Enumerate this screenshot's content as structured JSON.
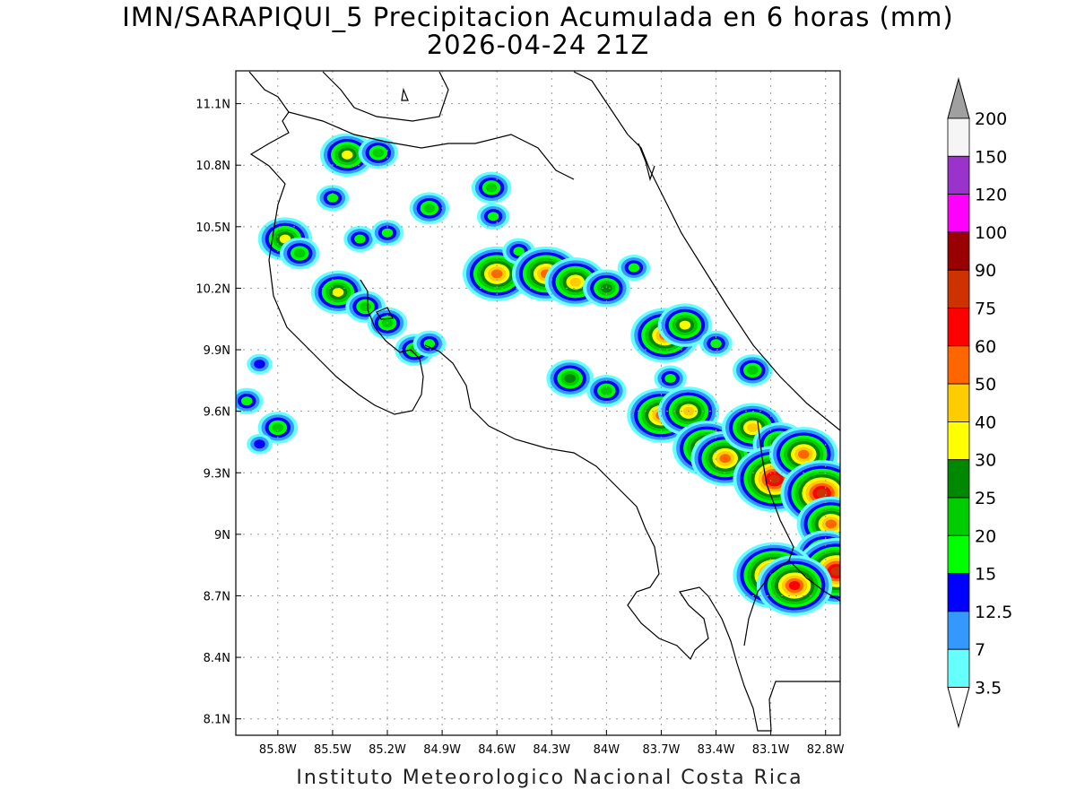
{
  "title": "IMN/SARAPIQUI_5 Precipitacion Acumulada en 6 horas (mm)",
  "subtitle": "2026-04-24 21Z",
  "footer": "Instituto Meteorologico Nacional Costa Rica",
  "map": {
    "lon_range": [
      -86.03,
      -82.72
    ],
    "lat_range": [
      8.02,
      11.26
    ],
    "grid": true
  },
  "axes": {
    "lat_ticks": [
      {
        "value": 11.1,
        "label": "11.1N"
      },
      {
        "value": 10.8,
        "label": "10.8N"
      },
      {
        "value": 10.5,
        "label": "10.5N"
      },
      {
        "value": 10.2,
        "label": "10.2N"
      },
      {
        "value": 9.9,
        "label": "9.9N"
      },
      {
        "value": 9.6,
        "label": "9.6N"
      },
      {
        "value": 9.3,
        "label": "9.3N"
      },
      {
        "value": 9.0,
        "label": "9N"
      },
      {
        "value": 8.7,
        "label": "8.7N"
      },
      {
        "value": 8.4,
        "label": "8.4N"
      },
      {
        "value": 8.1,
        "label": "8.1N"
      }
    ],
    "lon_ticks": [
      {
        "value": -85.8,
        "label": "85.8W"
      },
      {
        "value": -85.5,
        "label": "85.5W"
      },
      {
        "value": -85.2,
        "label": "85.2W"
      },
      {
        "value": -84.9,
        "label": "84.9W"
      },
      {
        "value": -84.6,
        "label": "84.6W"
      },
      {
        "value": -84.3,
        "label": "84.3W"
      },
      {
        "value": -84.0,
        "label": "84W"
      },
      {
        "value": -83.7,
        "label": "83.7W"
      },
      {
        "value": -83.4,
        "label": "83.4W"
      },
      {
        "value": -83.1,
        "label": "83.1W"
      },
      {
        "value": -82.8,
        "label": "82.8W"
      }
    ]
  },
  "colorbar": {
    "under_color": "#ffffff",
    "over_color": "#a0a0a0",
    "bins": [
      {
        "color": "#66ffff",
        "label": "3.5"
      },
      {
        "color": "#3399ff",
        "label": "7"
      },
      {
        "color": "#0000ff",
        "label": "12.5"
      },
      {
        "color": "#00ff00",
        "label": "15"
      },
      {
        "color": "#00cc00",
        "label": "20"
      },
      {
        "color": "#008800",
        "label": "25"
      },
      {
        "color": "#ffff00",
        "label": "30"
      },
      {
        "color": "#ffcc00",
        "label": "40"
      },
      {
        "color": "#ff6600",
        "label": "50"
      },
      {
        "color": "#ff0000",
        "label": "60"
      },
      {
        "color": "#cc3300",
        "label": "75"
      },
      {
        "color": "#990000",
        "label": "90"
      },
      {
        "color": "#ff00ff",
        "label": "100"
      },
      {
        "color": "#9933cc",
        "label": "120"
      },
      {
        "color": "#f5f5f5",
        "label": "150"
      }
    ],
    "top_label": "200"
  },
  "precip_cells": [
    {
      "lon": -85.76,
      "lat": 10.44,
      "level": 6
    },
    {
      "lon": -85.68,
      "lat": 10.37,
      "level": 4
    },
    {
      "lon": -85.47,
      "lat": 10.18,
      "level": 6
    },
    {
      "lon": -85.32,
      "lat": 10.11,
      "level": 4
    },
    {
      "lon": -85.2,
      "lat": 10.03,
      "level": 4
    },
    {
      "lon": -85.05,
      "lat": 9.9,
      "level": 4
    },
    {
      "lon": -84.97,
      "lat": 9.93,
      "level": 3
    },
    {
      "lon": -85.42,
      "lat": 10.85,
      "level": 6
    },
    {
      "lon": -85.25,
      "lat": 10.86,
      "level": 4
    },
    {
      "lon": -85.5,
      "lat": 10.64,
      "level": 3
    },
    {
      "lon": -85.35,
      "lat": 10.44,
      "level": 3
    },
    {
      "lon": -84.97,
      "lat": 10.59,
      "level": 4
    },
    {
      "lon": -85.2,
      "lat": 10.47,
      "level": 3
    },
    {
      "lon": -84.63,
      "lat": 10.69,
      "level": 4
    },
    {
      "lon": -84.62,
      "lat": 10.55,
      "level": 3
    },
    {
      "lon": -84.6,
      "lat": 10.27,
      "level": 8
    },
    {
      "lon": -84.48,
      "lat": 10.38,
      "level": 3
    },
    {
      "lon": -84.33,
      "lat": 10.27,
      "level": 8
    },
    {
      "lon": -84.17,
      "lat": 10.23,
      "level": 7
    },
    {
      "lon": -84.0,
      "lat": 10.2,
      "level": 5
    },
    {
      "lon": -83.85,
      "lat": 10.3,
      "level": 3
    },
    {
      "lon": -83.68,
      "lat": 9.97,
      "level": 8
    },
    {
      "lon": -83.57,
      "lat": 10.02,
      "level": 6
    },
    {
      "lon": -83.65,
      "lat": 9.76,
      "level": 3
    },
    {
      "lon": -84.2,
      "lat": 9.76,
      "level": 5
    },
    {
      "lon": -84.0,
      "lat": 9.7,
      "level": 4
    },
    {
      "lon": -83.7,
      "lat": 9.58,
      "level": 8
    },
    {
      "lon": -83.55,
      "lat": 9.6,
      "level": 7
    },
    {
      "lon": -83.45,
      "lat": 9.42,
      "level": 8
    },
    {
      "lon": -83.35,
      "lat": 9.37,
      "level": 8
    },
    {
      "lon": -83.2,
      "lat": 9.52,
      "level": 7
    },
    {
      "lon": -83.05,
      "lat": 9.44,
      "level": 6
    },
    {
      "lon": -83.08,
      "lat": 9.27,
      "level": 10
    },
    {
      "lon": -82.92,
      "lat": 9.39,
      "level": 8
    },
    {
      "lon": -82.82,
      "lat": 9.2,
      "level": 10
    },
    {
      "lon": -82.77,
      "lat": 9.05,
      "level": 8
    },
    {
      "lon": -82.8,
      "lat": 8.9,
      "level": 7
    },
    {
      "lon": -82.74,
      "lat": 8.82,
      "level": 10
    },
    {
      "lon": -83.08,
      "lat": 8.8,
      "level": 10
    },
    {
      "lon": -82.97,
      "lat": 8.75,
      "level": 9
    },
    {
      "lon": -83.4,
      "lat": 9.93,
      "level": 3
    },
    {
      "lon": -83.2,
      "lat": 9.8,
      "level": 4
    },
    {
      "lon": -85.8,
      "lat": 9.52,
      "level": 4
    },
    {
      "lon": -85.97,
      "lat": 9.65,
      "level": 3
    },
    {
      "lon": -85.9,
      "lat": 9.83,
      "level": 2
    },
    {
      "lon": -85.9,
      "lat": 9.44,
      "level": 2
    }
  ]
}
